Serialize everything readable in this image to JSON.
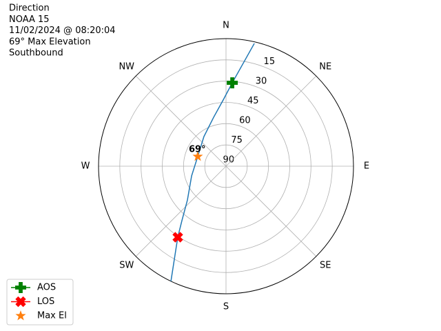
{
  "chart_data": {
    "type": "polar",
    "title_lines": [
      "Direction",
      "NOAA 15",
      "11/02/2024 @ 08:20:04",
      "69° Max Elevation",
      "Southbound"
    ],
    "theta_zero": "N",
    "theta_direction": "clockwise",
    "rlim": [
      90,
      0
    ],
    "rticks": [
      90,
      75,
      60,
      45,
      30,
      15
    ],
    "thetaticks": [
      {
        "value": 0,
        "label": "N"
      },
      {
        "value": 45,
        "label": "NE"
      },
      {
        "value": 90,
        "label": "E"
      },
      {
        "value": 135,
        "label": "SE"
      },
      {
        "value": 180,
        "label": "S"
      },
      {
        "value": 225,
        "label": "SW"
      },
      {
        "value": 270,
        "label": "W"
      },
      {
        "value": 315,
        "label": "NW"
      }
    ],
    "grid": true,
    "track": {
      "color": "#1f77b4",
      "theta": [
        13.0,
        4.3,
        357.6,
        345.8,
        323.3,
        288.9,
        254.4,
        228.8,
        219.0,
        214.2,
        205.6
      ],
      "r": [
        1.1,
        31.0,
        43.2,
        54.4,
        63.9,
        68.9,
        64.8,
        53.8,
        40.5,
        29.4,
        0.0
      ]
    },
    "series": [
      {
        "name": "AOS",
        "color": "#008000",
        "marker": "plus",
        "line": true,
        "theta": [
          4.3
        ],
        "r": [
          31.0
        ]
      },
      {
        "name": "LOS",
        "color": "#ff0000",
        "marker": "x",
        "line": true,
        "theta": [
          214.2
        ],
        "r": [
          29.4
        ]
      },
      {
        "name": "Max El",
        "color": "#ff7f0e",
        "marker": "star",
        "line": false,
        "theta": [
          288.9
        ],
        "r": [
          68.9
        ]
      }
    ],
    "annotation": "69°",
    "legend": "lower left"
  }
}
